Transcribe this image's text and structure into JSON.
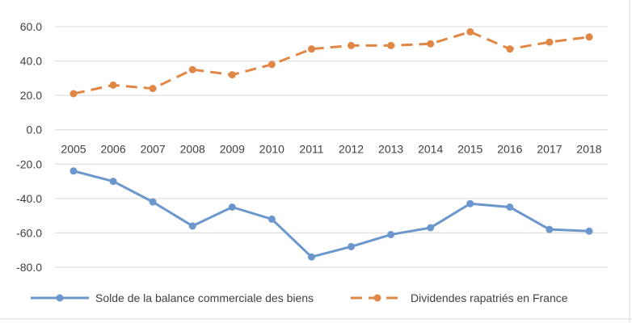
{
  "chart_data": {
    "type": "line",
    "categories": [
      "2005",
      "2006",
      "2007",
      "2008",
      "2009",
      "2010",
      "2011",
      "2012",
      "2013",
      "2014",
      "2015",
      "2016",
      "2017",
      "2018"
    ],
    "y_tick_labels": [
      "60.0",
      "40.0",
      "20.0",
      "0.0",
      "-20.0",
      "-40.0",
      "-60.0",
      "-80.0"
    ],
    "y_ticks": [
      60,
      40,
      20,
      0,
      -20,
      -40,
      -60,
      -80
    ],
    "ylim": [
      -80,
      60
    ],
    "grid": true,
    "legend_position": "bottom",
    "series": [
      {
        "name": "Solde de la balance commerciale des biens",
        "color": "#6b97cc",
        "line_style": "solid",
        "values": [
          -24,
          -30,
          -42,
          -56,
          -45,
          -52,
          -74,
          -68,
          -61,
          -57,
          -43,
          -45,
          -58,
          -59
        ]
      },
      {
        "name": "Dividendes rapatriés en France",
        "color": "#e08745",
        "line_style": "dashed",
        "values": [
          21,
          26,
          24,
          35,
          32,
          38,
          47,
          49,
          49,
          50,
          57,
          47,
          51,
          54
        ]
      }
    ]
  }
}
